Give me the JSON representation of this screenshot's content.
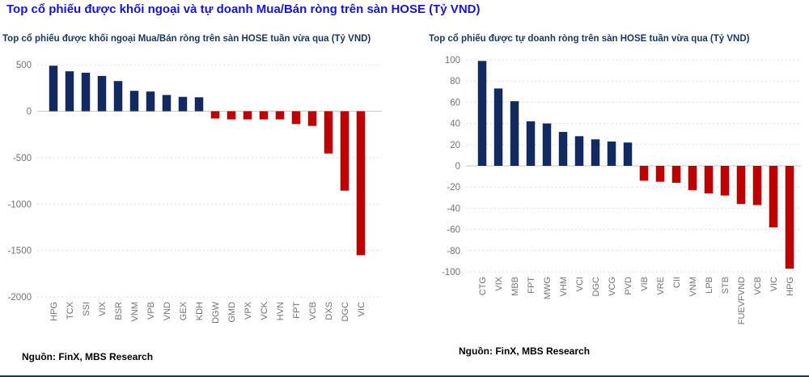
{
  "page": {
    "main_title": "Top cổ phiếu được khối ngoại và tự doanh Mua/Bán ròng trên sàn HOSE (Tỷ VND)"
  },
  "colors": {
    "title_blue": "#1414DC",
    "subtitle_navy": "#17375E",
    "bar_positive": "#132A60",
    "bar_negative": "#C00000",
    "axis_text": "#737373",
    "gridline": "#DCDCDC",
    "zero_line": "#C9C9C9",
    "source_text": "#000000",
    "bottom_rule": "#17375E"
  },
  "chart_data": [
    {
      "type": "bar",
      "title": "Top cổ phiếu được khối ngoại Mua/Bán ròng trên sàn HOSE tuần vừa qua (Tỷ VND)",
      "source_label": "Nguồn: FinX, MBS Research",
      "categories": [
        "HPG",
        "TCX",
        "SSI",
        "VIX",
        "BSR",
        "VNM",
        "VPB",
        "VND",
        "GEX",
        "KDH",
        "DGW",
        "GMD",
        "VPX",
        "VCK",
        "HVN",
        "FPT",
        "VCB",
        "DXS",
        "DGC",
        "VIC"
      ],
      "values": [
        490,
        430,
        415,
        380,
        325,
        220,
        212,
        175,
        155,
        150,
        -78,
        -88,
        -88,
        -88,
        -88,
        -138,
        -158,
        -455,
        -855,
        -1550
      ],
      "xlabel": "",
      "ylabel": "",
      "ylim": [
        -2000,
        500
      ],
      "yticks": [
        500,
        0,
        -500,
        -1000,
        -1500,
        -2000
      ],
      "grid": "horizontal-dashed",
      "legend": "none",
      "positive_color": "#132A60",
      "negative_color": "#C00000"
    },
    {
      "type": "bar",
      "title": "Top cổ phiếu được tự doanh ròng trên sàn HOSE tuần vừa qua (Tỷ VND)",
      "source_label": "Nguồn: FinX, MBS Research",
      "categories": [
        "CTG",
        "VIX",
        "MBB",
        "FPT",
        "MWG",
        "VHM",
        "VCI",
        "DGC",
        "VCG",
        "PVD",
        "VIB",
        "VRE",
        "CII",
        "VNM",
        "LPB",
        "STB",
        "FUEVFVND",
        "VCB",
        "VIC",
        "HPG"
      ],
      "values": [
        99,
        73,
        61,
        42,
        40,
        32,
        28,
        25,
        23,
        22,
        -14,
        -15,
        -16,
        -23,
        -26,
        -28,
        -36,
        -37,
        -58,
        -97
      ],
      "xlabel": "",
      "ylabel": "",
      "ylim": [
        -100,
        100
      ],
      "yticks": [
        100,
        80,
        60,
        40,
        20,
        0,
        -20,
        -40,
        -60,
        -80,
        -100
      ],
      "grid": "horizontal-dashed",
      "legend": "none",
      "positive_color": "#132A60",
      "negative_color": "#C00000"
    }
  ]
}
